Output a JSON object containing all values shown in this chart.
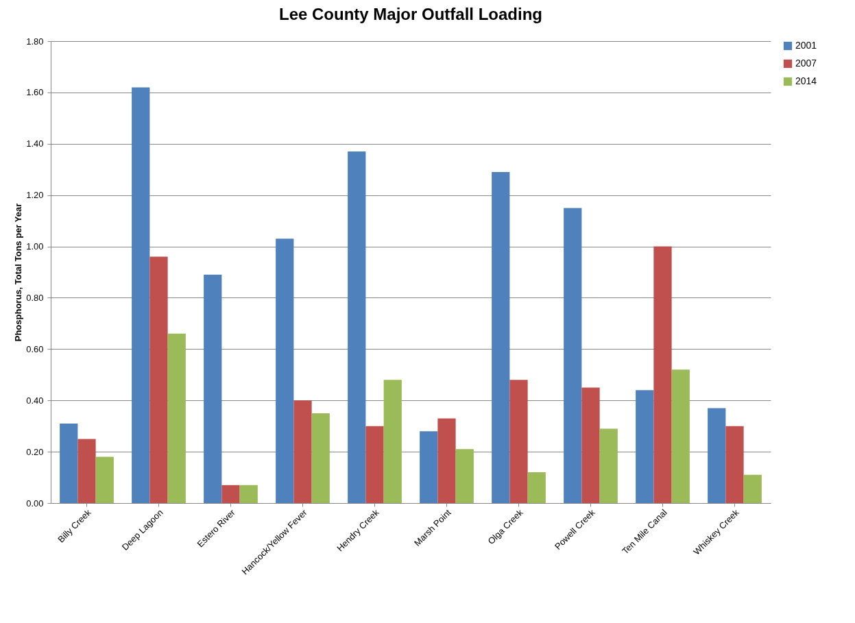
{
  "chart_data": {
    "type": "bar",
    "title": "Lee County Major Outfall Loading",
    "ylabel": "Phosphorus, Total Tons per Year",
    "categories": [
      "Billy Creek",
      "Deep Lagoon",
      "Estero River",
      "Hancock/Yellow Fever",
      "Hendry Creek",
      "Marsh Point",
      "Olga Creek",
      "Powell Creek",
      "Ten Mile Canal",
      "Whiskey Creek"
    ],
    "series": [
      {
        "name": "2001",
        "color": "#4f81bd",
        "values": [
          0.31,
          1.62,
          0.89,
          1.03,
          1.37,
          0.28,
          1.29,
          1.15,
          0.44,
          0.37
        ]
      },
      {
        "name": "2007",
        "color": "#c0504d",
        "values": [
          0.25,
          0.96,
          0.07,
          0.4,
          0.3,
          0.33,
          0.48,
          0.45,
          1.0,
          0.3
        ]
      },
      {
        "name": "2014",
        "color": "#9bbb59",
        "values": [
          0.18,
          0.66,
          0.07,
          0.35,
          0.48,
          0.21,
          0.12,
          0.29,
          0.52,
          0.11
        ]
      }
    ],
    "ylim": [
      0,
      1.8
    ],
    "yticks": [
      {
        "value": 0,
        "label": "0.00"
      },
      {
        "value": 0.2,
        "label": "0.20"
      },
      {
        "value": 0.4,
        "label": "0.40"
      },
      {
        "value": 0.6,
        "label": "0.60"
      },
      {
        "value": 0.8,
        "label": "0.80"
      },
      {
        "value": 1,
        "label": "1.00"
      },
      {
        "value": 1.2,
        "label": "1.20"
      },
      {
        "value": 1.4,
        "label": "1.40"
      },
      {
        "value": 1.6,
        "label": "1.60"
      },
      {
        "value": 1.8,
        "label": "1.80"
      }
    ],
    "grid": "y",
    "legend": "right"
  }
}
